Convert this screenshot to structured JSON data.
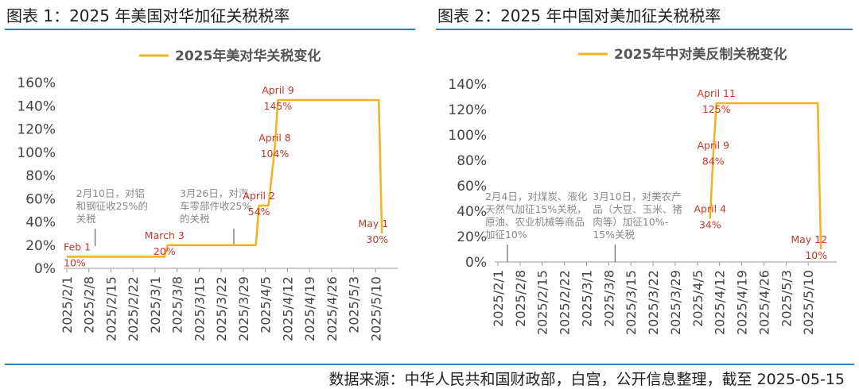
{
  "figures": [
    {
      "title": "图表 1：2025 年美国对华加征关税税率"
    },
    {
      "title": "图表 2：2025 年中国对美加征关税税率"
    }
  ],
  "source": "数据来源：中华人民共和国财政部，白宫，公开信息整理，截至 2025-05-15",
  "colors": {
    "line": "#f5b21f",
    "label": "#c0392b",
    "annotation": "#888888",
    "axis": "#999999",
    "rule": "#2d7fc1"
  },
  "chart_data": [
    {
      "type": "line",
      "legend": "2025年美对华关税变化",
      "legend_position": "top-center",
      "grid": false,
      "ylim": [
        0,
        160
      ],
      "ytick_labels": [
        "0%",
        "20%",
        "40%",
        "60%",
        "80%",
        "100%",
        "120%",
        "140%",
        "160%"
      ],
      "xtick_labels": [
        "2025/2/1",
        "2025/2/8",
        "2025/2/15",
        "2025/2/22",
        "2025/3/1",
        "2025/3/8",
        "2025/3/15",
        "2025/3/22",
        "2025/3/29",
        "2025/4/5",
        "2025/4/12",
        "2025/4/19",
        "2025/4/26",
        "2025/5/3",
        "2025/5/10"
      ],
      "series": [
        {
          "values": [
            [
              "2025-02-01",
              10
            ],
            [
              "2025-03-04",
              10
            ],
            [
              "2025-03-05",
              20
            ],
            [
              "2025-04-02",
              20
            ],
            [
              "2025-04-03",
              54
            ],
            [
              "2025-04-06",
              54
            ],
            [
              "2025-04-08",
              104
            ],
            [
              "2025-04-09",
              145
            ],
            [
              "2025-05-11",
              145
            ],
            [
              "2025-05-12",
              30
            ]
          ]
        }
      ],
      "annotations": [
        {
          "date": "2025-02-01",
          "value": 10,
          "line1": "Feb 1",
          "line2": "10%"
        },
        {
          "date": "2025-03-04",
          "value": 20,
          "line1": "March 3",
          "line2": "20%"
        },
        {
          "date": "2025-04-03",
          "value": 54,
          "line1": "April 2",
          "line2": "54%"
        },
        {
          "date": "2025-04-08",
          "value": 104,
          "line1": "April 8",
          "line2": "104%"
        },
        {
          "date": "2025-04-09",
          "value": 145,
          "line1": "April 9",
          "line2": "145%"
        },
        {
          "date": "2025-05-12",
          "value": 30,
          "line1": "May 1",
          "line2": "30%"
        }
      ],
      "notes": [
        {
          "date": "2025-02-10",
          "lines": [
            "2月10日，对铝",
            "和钢征收25%的",
            "关税"
          ]
        },
        {
          "date": "2025-03-26",
          "lines": [
            "3月26日，对汽",
            "车零部件收25%",
            "的关税"
          ]
        }
      ]
    },
    {
      "type": "line",
      "legend": "2025年中对美反制关税变化",
      "legend_position": "top-center",
      "grid": false,
      "ylim": [
        0,
        140
      ],
      "ytick_labels": [
        "0%",
        "20%",
        "40%",
        "60%",
        "80%",
        "100%",
        "120%",
        "140%"
      ],
      "xtick_labels": [
        "2025/2/1",
        "2025/2/8",
        "2025/2/15",
        "2025/2/22",
        "2025/3/1",
        "2025/3/8",
        "2025/3/15",
        "2025/3/22",
        "2025/3/29",
        "2025/4/5",
        "2025/4/12",
        "2025/4/19",
        "2025/4/26",
        "2025/5/3",
        "2025/5/10"
      ],
      "series": [
        {
          "values": [
            [
              "2025-04-09",
              34
            ],
            [
              "2025-04-10",
              84
            ],
            [
              "2025-04-11",
              125
            ],
            [
              "2025-05-13",
              125
            ],
            [
              "2025-05-14",
              10
            ]
          ]
        }
      ],
      "annotations": [
        {
          "date": "2025-04-09",
          "value": 34,
          "line1": "April 4",
          "line2": "34%"
        },
        {
          "date": "2025-04-10",
          "value": 84,
          "line1": "April 9",
          "line2": "84%"
        },
        {
          "date": "2025-04-11",
          "value": 125,
          "line1": "April 11",
          "line2": "125%"
        },
        {
          "date": "2025-05-14",
          "value": 10,
          "line1": "May 12",
          "line2": "10%"
        }
      ],
      "notes": [
        {
          "date": "2025-02-04",
          "lines": [
            "2月4日，对煤炭、液化",
            "天然气加征15%关税，",
            "原油、农业机械等商品",
            "加征10%"
          ]
        },
        {
          "date": "2025-03-10",
          "lines": [
            "3月10日，对美农产",
            "品（大豆、玉米、猪",
            "肉等）加征10%-",
            "15%关税"
          ]
        }
      ]
    }
  ]
}
